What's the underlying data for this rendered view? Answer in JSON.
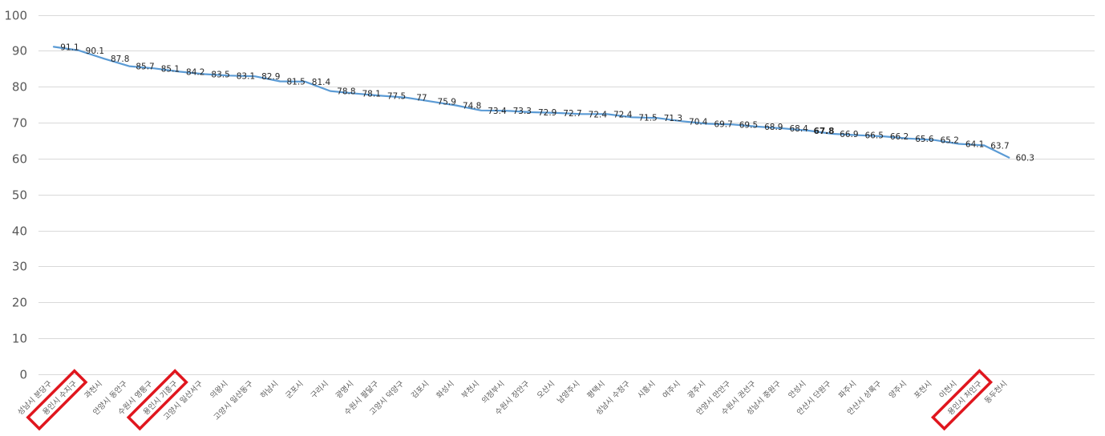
{
  "chart_data": {
    "type": "line",
    "title": "",
    "xlabel": "",
    "ylabel": "",
    "ylim": [
      0,
      100
    ],
    "yticks": [
      "0",
      "10",
      "20",
      "30",
      "40",
      "50",
      "60",
      "70",
      "80",
      "90",
      "100"
    ],
    "grid": true,
    "legend": "none",
    "categories": [
      "성남시 분당구",
      "용인시 수지구",
      "과천시",
      "안양시 동안구",
      "수원시 영통구",
      "용인시 기흥구",
      "고양시 일산서구",
      "의왕시",
      "고양시 일산동구",
      "하남시",
      "군포시",
      "구리시",
      "광명시",
      "수원시 팔달구",
      "고양시 덕양구",
      "김포시",
      "화성시",
      "부천시",
      "의정부시",
      "수원시 장안구",
      "오산시",
      "남양주시",
      "평택시",
      "성남시 수정구",
      "시흥시",
      "여주시",
      "광주시",
      "안양시 만안구",
      "수원시 권선구",
      "성남시 중원구",
      "안성시",
      "안산시 단원구",
      "파주시",
      "안산시 상록구",
      "양주시",
      "포천시",
      "이천시",
      "용인시 처인구",
      "동두천시"
    ],
    "series": [
      {
        "values": [
          91.1,
          90.1,
          87.8,
          85.7,
          85.1,
          84.2,
          83.5,
          83.1,
          82.9,
          81.5,
          81.4,
          78.8,
          78.1,
          77.5,
          77,
          75.9,
          74.8,
          73.4,
          73.3,
          72.9,
          72.7,
          72.4,
          72.4,
          71.5,
          71.3,
          70.4,
          69.7,
          69.5,
          68.9,
          68.4,
          67.8,
          66.9,
          66.5,
          66.2,
          65.6,
          65.2,
          64.1,
          63.7,
          60.3
        ],
        "color": "#5b9bd5"
      }
    ],
    "data_labels": [
      "91.1",
      "90.1",
      "87.8",
      "85.7",
      "85.1",
      "84.2",
      "83.5",
      "83.1",
      "82.9",
      "81.5",
      "81.4",
      "78.8",
      "78.1",
      "77.5",
      "77",
      "75.9",
      "74.8",
      "73.4",
      "73.3",
      "72.9",
      "72.7",
      "72.4",
      "72.4",
      "71.5",
      "71.3",
      "70.4",
      "69.7",
      "69.5",
      "68.9",
      "68.4",
      "67.8",
      "66.9",
      "66.5",
      "66.2",
      "65.6",
      "65.2",
      "64.1",
      "63.7",
      "60.3"
    ],
    "highlighted_label_index": 30,
    "highlight_label_color": "#e0161e",
    "highlight_box_indices": [
      1,
      5,
      37
    ],
    "highlight_box_color": "#e0161e",
    "gridline_color": "#d9d9d9"
  }
}
